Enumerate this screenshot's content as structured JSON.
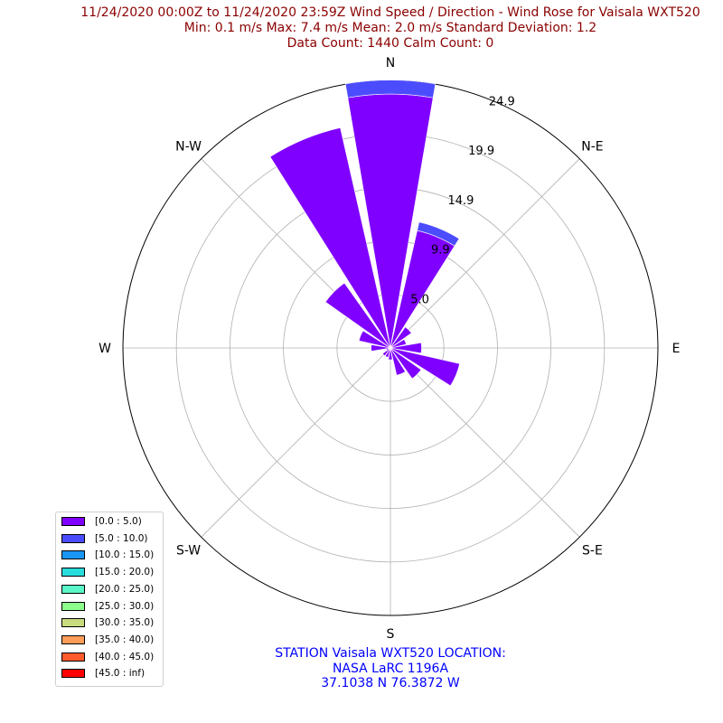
{
  "title": {
    "line1": "11/24/2020 00:00Z to 11/24/2020 23:59Z Wind Speed / Direction - Wind Rose for Vaisala WXT520",
    "line2": "Min: 0.1 m/s   Max: 7.4 m/s   Mean: 2.0 m/s  Standard Deviation: 1.2",
    "line3": "Data Count: 1440  Calm Count:  0"
  },
  "station": {
    "line1": "STATION Vaisala WXT520 LOCATION:",
    "line2": "NASA LaRC 1196A",
    "line3": "37.1038 N 76.3872 W"
  },
  "chart_data": {
    "type": "windrose",
    "directions": [
      "N",
      "N-E",
      "E",
      "S-E",
      "S",
      "S-W",
      "W",
      "N-W"
    ],
    "radial_ticks": [
      4.97,
      9.95,
      14.92,
      19.9,
      24.87
    ],
    "radial_tick_labels": [
      "5.0",
      "9.9",
      "14.9",
      "19.9",
      "24.9"
    ],
    "rmax": 24.87,
    "bins": [
      {
        "label": "[0.0 : 5.0)",
        "color": "#7f00ff"
      },
      {
        "label": "[5.0 : 10.0)",
        "color": "#4c4cff"
      },
      {
        "label": "[10.0 : 15.0)",
        "color": "#1996f3"
      },
      {
        "label": "[15.0 : 20.0)",
        "color": "#2adddd"
      },
      {
        "label": "[20.0 : 25.0)",
        "color": "#5af8c8"
      },
      {
        "label": "[25.0 : 30.0)",
        "color": "#8dff8d"
      },
      {
        "label": "[30.0 : 35.0)",
        "color": "#c8dc7e"
      },
      {
        "label": "[35.0 : 40.0)",
        "color": "#ff9d59"
      },
      {
        "label": "[40.0 : 45.0)",
        "color": "#ff5a2c"
      },
      {
        "label": "[45.0 : inf)",
        "color": "#ff0000"
      }
    ],
    "sector_angles_deg": [
      0,
      22.5,
      45,
      67.5,
      90,
      112.5,
      135,
      157.5,
      180,
      202.5,
      225,
      247.5,
      270,
      292.5,
      315,
      337.5
    ],
    "sector_values": [
      [
        23.6,
        1.3
      ],
      [
        11.2,
        0.8
      ],
      [
        2.4,
        0
      ],
      [
        1.5,
        0
      ],
      [
        2.9,
        0
      ],
      [
        6.6,
        0
      ],
      [
        3.5,
        0
      ],
      [
        2.6,
        0
      ],
      [
        1.1,
        0
      ],
      [
        0.9,
        0
      ],
      [
        0.9,
        0
      ],
      [
        0.4,
        0
      ],
      [
        1.8,
        0
      ],
      [
        3.0,
        0
      ],
      [
        7.4,
        0
      ],
      [
        21.0,
        0
      ]
    ]
  }
}
